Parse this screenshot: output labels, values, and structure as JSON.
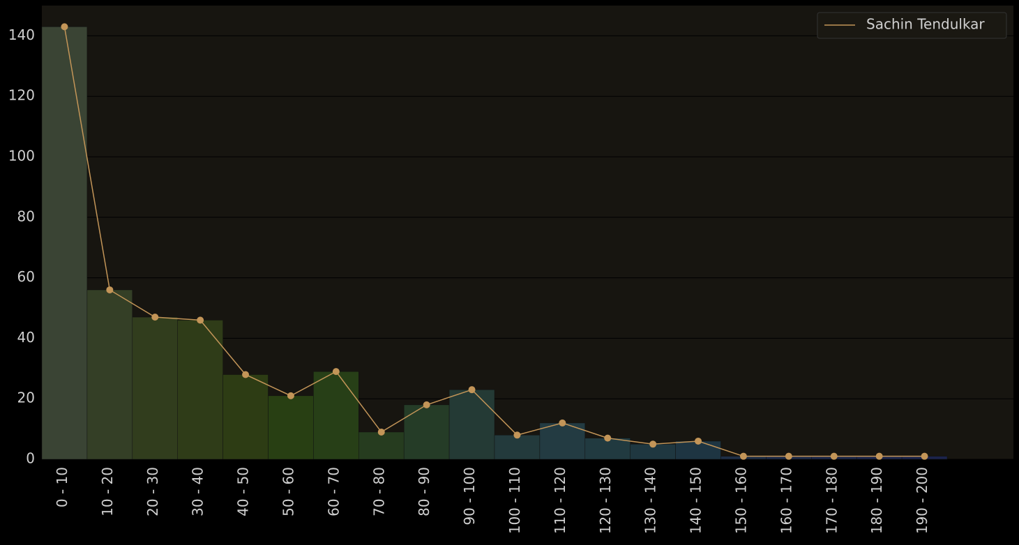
{
  "chart_data": {
    "type": "bar_line",
    "categories": [
      "0 - 10",
      "10 - 20",
      "20 - 30",
      "30 - 40",
      "40 - 50",
      "50 - 60",
      "60 - 70",
      "70 - 80",
      "80 - 90",
      "90 - 100",
      "100 - 110",
      "110 - 120",
      "120 - 130",
      "130 - 140",
      "140 - 150",
      "150 - 160",
      "160 - 170",
      "170 - 180",
      "180 - 190",
      "190 - 200"
    ],
    "series": [
      {
        "name": "Sachin Tendulkar",
        "color": "#c39558",
        "values": [
          143,
          56,
          47,
          46,
          28,
          21,
          29,
          9,
          18,
          23,
          8,
          12,
          7,
          5,
          6,
          1,
          1,
          1,
          1,
          1
        ]
      }
    ],
    "bar_colors": [
      "#3a4434",
      "#343f26",
      "#313d1d",
      "#2f3c18",
      "#2d3c14",
      "#283f13",
      "#273f17",
      "#263c1f",
      "#253c27",
      "#243a35",
      "#233a3c",
      "#233b42",
      "#213a40",
      "#1f3740",
      "#1e3542",
      "#1e2e46",
      "#1d2a48",
      "#1c2749",
      "#1c254a",
      "#1b234b"
    ],
    "ylim": [
      0,
      150
    ],
    "yticks": [
      0,
      20,
      40,
      60,
      80,
      100,
      120,
      140
    ],
    "grid": true,
    "legend": "upper right"
  }
}
